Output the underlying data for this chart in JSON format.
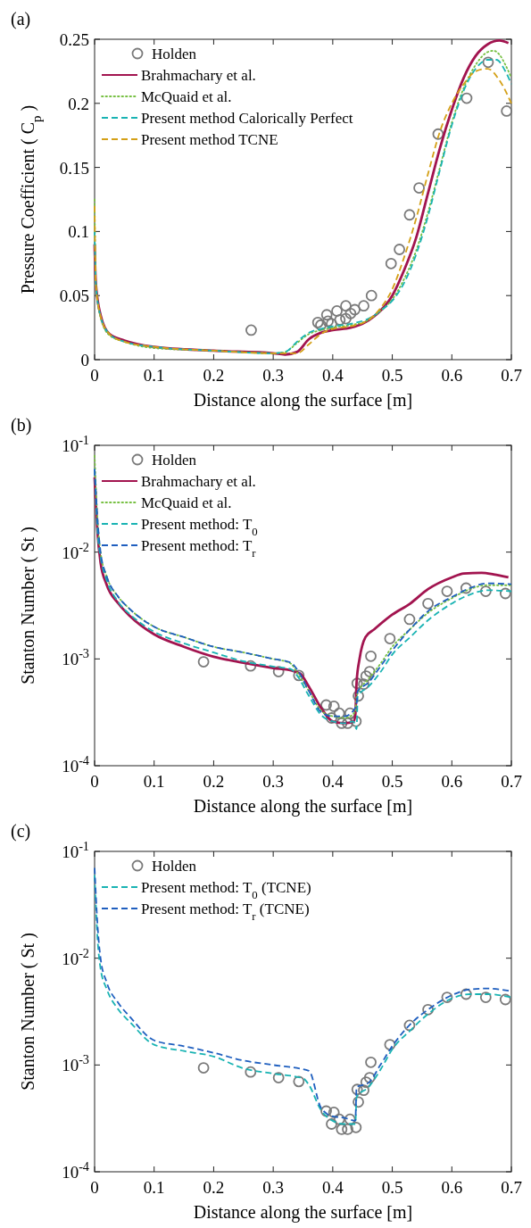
{
  "chart_data": [
    {
      "type": "line",
      "title": "(a)",
      "xlabel": "Distance along the surface [m]",
      "ylabel": "Pressure Coefficient ( C$_{p}$ )",
      "xlim": [
        0,
        0.7
      ],
      "ylim": [
        0,
        0.25
      ],
      "xticks": [
        0,
        0.1,
        0.2,
        0.3,
        0.4,
        0.5,
        0.6,
        0.7
      ],
      "yticks": [
        0,
        0.05,
        0.1,
        0.15,
        0.2,
        0.25
      ],
      "legend": "top left",
      "series": [
        {
          "name": "Holden",
          "type": "scatter",
          "marker": "circle",
          "color": "#7a7a7a",
          "x": [
            0.263,
            0.375,
            0.38,
            0.39,
            0.392,
            0.398,
            0.407,
            0.412,
            0.422,
            0.422,
            0.43,
            0.437,
            0.452,
            0.465,
            0.498,
            0.512,
            0.529,
            0.545,
            0.577,
            0.625,
            0.661,
            0.692
          ],
          "values": [
            0.023,
            0.029,
            0.027,
            0.035,
            0.03,
            0.028,
            0.038,
            0.031,
            0.042,
            0.032,
            0.036,
            0.039,
            0.042,
            0.05,
            0.075,
            0.086,
            0.113,
            0.134,
            0.176,
            0.204,
            0.232,
            0.194
          ]
        },
        {
          "name": "Brahmachary et al.",
          "type": "line",
          "line_style": "solid",
          "color": "#a2144f",
          "x": [
            0,
            0.002,
            0.01,
            0.025,
            0.05,
            0.1,
            0.2,
            0.3,
            0.32,
            0.34,
            0.36,
            0.38,
            0.4,
            0.43,
            0.45,
            0.47,
            0.5,
            0.52,
            0.54,
            0.56,
            0.58,
            0.6,
            0.62,
            0.64,
            0.66,
            0.68,
            0.695
          ],
          "values": [
            0.09,
            0.06,
            0.035,
            0.02,
            0.015,
            0.01,
            0.007,
            0.005,
            0.004,
            0.006,
            0.016,
            0.021,
            0.023,
            0.025,
            0.028,
            0.034,
            0.05,
            0.07,
            0.095,
            0.13,
            0.165,
            0.195,
            0.22,
            0.237,
            0.246,
            0.249,
            0.247
          ]
        },
        {
          "name": "McQuaid et al.",
          "type": "line",
          "line_style": "dotted",
          "color": "#77c043",
          "x": [
            0,
            0.002,
            0.01,
            0.025,
            0.05,
            0.1,
            0.2,
            0.3,
            0.32,
            0.34,
            0.36,
            0.38,
            0.4,
            0.43,
            0.46,
            0.48,
            0.5,
            0.52,
            0.54,
            0.56,
            0.58,
            0.6,
            0.62,
            0.64,
            0.66,
            0.67,
            0.68,
            0.69,
            0.7
          ],
          "values": [
            0.125,
            0.06,
            0.033,
            0.019,
            0.014,
            0.009,
            0.007,
            0.005,
            0.006,
            0.013,
            0.02,
            0.023,
            0.025,
            0.027,
            0.031,
            0.038,
            0.047,
            0.063,
            0.085,
            0.115,
            0.15,
            0.185,
            0.212,
            0.23,
            0.24,
            0.241,
            0.238,
            0.23,
            0.22
          ]
        },
        {
          "name": "Present method Calorically Perfect",
          "type": "line",
          "line_style": "dashed",
          "color": "#19b3b3",
          "x": [
            0,
            0.002,
            0.01,
            0.025,
            0.05,
            0.1,
            0.2,
            0.3,
            0.32,
            0.34,
            0.36,
            0.38,
            0.4,
            0.43,
            0.46,
            0.48,
            0.5,
            0.52,
            0.54,
            0.56,
            0.58,
            0.6,
            0.62,
            0.64,
            0.66,
            0.675,
            0.69,
            0.7
          ],
          "values": [
            0.1,
            0.06,
            0.034,
            0.02,
            0.014,
            0.01,
            0.007,
            0.005,
            0.006,
            0.014,
            0.021,
            0.024,
            0.026,
            0.028,
            0.032,
            0.038,
            0.046,
            0.06,
            0.082,
            0.112,
            0.148,
            0.183,
            0.21,
            0.227,
            0.234,
            0.234,
            0.225,
            0.215
          ]
        },
        {
          "name": "Present method TCNE",
          "type": "line",
          "line_style": "dashed",
          "color": "#d4a017",
          "x": [
            0,
            0.002,
            0.01,
            0.025,
            0.05,
            0.1,
            0.2,
            0.3,
            0.34,
            0.36,
            0.38,
            0.4,
            0.43,
            0.46,
            0.48,
            0.5,
            0.52,
            0.54,
            0.56,
            0.58,
            0.6,
            0.62,
            0.64,
            0.66,
            0.68,
            0.7
          ],
          "values": [
            0.12,
            0.06,
            0.034,
            0.02,
            0.014,
            0.01,
            0.007,
            0.005,
            0.005,
            0.012,
            0.02,
            0.024,
            0.026,
            0.031,
            0.04,
            0.055,
            0.08,
            0.11,
            0.145,
            0.178,
            0.2,
            0.215,
            0.225,
            0.227,
            0.218,
            0.2
          ]
        }
      ]
    },
    {
      "type": "line",
      "title": "(b)",
      "xlabel": "Distance along the surface [m]",
      "ylabel": "Stanton Number ( St )",
      "log": "y",
      "xlim": [
        0,
        0.7
      ],
      "ylim": [
        0.0001,
        0.1
      ],
      "xticks": [
        0,
        0.1,
        0.2,
        0.3,
        0.4,
        0.5,
        0.6,
        0.7
      ],
      "yticks": [
        {
          "value": 0.0001,
          "label": "10$^{-4}$"
        },
        {
          "value": 0.001,
          "label": "10$^{-3}$"
        },
        {
          "value": 0.01,
          "label": "10$^{-2}$"
        },
        {
          "value": 0.1,
          "label": "10$^{-1}$"
        }
      ],
      "legend": "top left",
      "series": [
        {
          "name": "Holden",
          "type": "scatter",
          "marker": "circle",
          "color": "#7a7a7a",
          "x": [
            0.183,
            0.262,
            0.309,
            0.343,
            0.389,
            0.398,
            0.402,
            0.411,
            0.415,
            0.425,
            0.429,
            0.439,
            0.441,
            0.443,
            0.452,
            0.456,
            0.462,
            0.464,
            0.496,
            0.529,
            0.56,
            0.592,
            0.624,
            0.657,
            0.69
          ],
          "values": [
            0.00094,
            0.00086,
            0.00076,
            0.0007,
            0.00037,
            0.00028,
            0.00036,
            0.00031,
            0.00025,
            0.00025,
            0.00031,
            0.00026,
            0.00059,
            0.00045,
            0.00058,
            0.00069,
            0.00076,
            0.00106,
            0.00155,
            0.00235,
            0.0033,
            0.0043,
            0.0046,
            0.0043,
            0.0041
          ]
        },
        {
          "name": "Brahmachary et al.",
          "type": "line",
          "line_style": "solid",
          "color": "#a2144f",
          "x": [
            0,
            0.005,
            0.01,
            0.02,
            0.04,
            0.06,
            0.1,
            0.15,
            0.2,
            0.25,
            0.3,
            0.33,
            0.345,
            0.36,
            0.38,
            0.4,
            0.42,
            0.435,
            0.438,
            0.44,
            0.445,
            0.455,
            0.47,
            0.5,
            0.53,
            0.56,
            0.6,
            0.62,
            0.65,
            0.67,
            0.695
          ],
          "values": [
            0.05,
            0.015,
            0.008,
            0.005,
            0.0033,
            0.0025,
            0.0017,
            0.0013,
            0.00105,
            0.00092,
            0.00082,
            0.00078,
            0.00073,
            0.00055,
            0.00035,
            0.00026,
            0.00025,
            0.00026,
            0.0003,
            0.0006,
            0.001,
            0.0016,
            0.0019,
            0.0026,
            0.0033,
            0.0045,
            0.0058,
            0.0063,
            0.0064,
            0.0062,
            0.0058
          ]
        },
        {
          "name": "McQuaid et al.",
          "type": "line",
          "line_style": "dotted",
          "color": "#77c043",
          "x": [
            0,
            0.005,
            0.01,
            0.02,
            0.04,
            0.06,
            0.1,
            0.15,
            0.2,
            0.25,
            0.3,
            0.32,
            0.33,
            0.34,
            0.36,
            0.38,
            0.4,
            0.42,
            0.438,
            0.44,
            0.46,
            0.48,
            0.5,
            0.53,
            0.56,
            0.6,
            0.63,
            0.66,
            0.7
          ],
          "values": [
            0.08,
            0.02,
            0.01,
            0.006,
            0.0038,
            0.0029,
            0.002,
            0.0016,
            0.0013,
            0.00115,
            0.001,
            0.00095,
            0.0009,
            0.00075,
            0.0005,
            0.00033,
            0.00029,
            0.00028,
            0.00032,
            0.00045,
            0.00065,
            0.0009,
            0.0013,
            0.0019,
            0.0027,
            0.0037,
            0.0045,
            0.0049,
            0.0049
          ]
        },
        {
          "name": "Present method: T$_{0}$",
          "type": "line",
          "line_style": "dashed",
          "color": "#19b3b3",
          "x": [
            0,
            0.005,
            0.01,
            0.02,
            0.04,
            0.06,
            0.1,
            0.15,
            0.2,
            0.25,
            0.3,
            0.33,
            0.34,
            0.36,
            0.38,
            0.4,
            0.42,
            0.435,
            0.44,
            0.442,
            0.46,
            0.48,
            0.5,
            0.53,
            0.56,
            0.6,
            0.63,
            0.66,
            0.7
          ],
          "values": [
            0.06,
            0.015,
            0.009,
            0.0055,
            0.0034,
            0.0026,
            0.0018,
            0.0014,
            0.00115,
            0.00095,
            0.00085,
            0.0008,
            0.0007,
            0.00045,
            0.0003,
            0.00026,
            0.00025,
            0.00026,
            0.00022,
            0.00045,
            0.00055,
            0.00075,
            0.0011,
            0.0016,
            0.0023,
            0.0033,
            0.004,
            0.0044,
            0.0043
          ]
        },
        {
          "name": "Present method: T$_{r}$",
          "type": "line",
          "line_style": "dashed",
          "color": "#1f5fbf",
          "x": [
            0,
            0.005,
            0.01,
            0.02,
            0.04,
            0.06,
            0.1,
            0.15,
            0.2,
            0.25,
            0.3,
            0.33,
            0.34,
            0.36,
            0.38,
            0.4,
            0.42,
            0.435,
            0.44,
            0.442,
            0.46,
            0.48,
            0.5,
            0.53,
            0.56,
            0.6,
            0.63,
            0.66,
            0.7
          ],
          "values": [
            0.06,
            0.02,
            0.01,
            0.006,
            0.0038,
            0.0029,
            0.002,
            0.0016,
            0.0013,
            0.00115,
            0.001,
            0.00092,
            0.0008,
            0.0005,
            0.00032,
            0.00029,
            0.00029,
            0.00033,
            0.00038,
            0.0005,
            0.0006,
            0.00085,
            0.0012,
            0.0019,
            0.0028,
            0.0038,
            0.0046,
            0.0051,
            0.005
          ]
        }
      ]
    },
    {
      "type": "line",
      "title": "(c)",
      "xlabel": "Distance along the surface [m]",
      "ylabel": "Stanton Number ( St )",
      "log": "y",
      "xlim": [
        0,
        0.7
      ],
      "ylim": [
        0.0001,
        0.1
      ],
      "xticks": [
        0,
        0.1,
        0.2,
        0.3,
        0.4,
        0.5,
        0.6,
        0.7
      ],
      "yticks": [
        {
          "value": 0.0001,
          "label": "10$^{-4}$"
        },
        {
          "value": 0.001,
          "label": "10$^{-3}$"
        },
        {
          "value": 0.01,
          "label": "10$^{-2}$"
        },
        {
          "value": 0.1,
          "label": "10$^{-1}$"
        }
      ],
      "legend": "top left",
      "series": [
        {
          "name": "Holden",
          "type": "scatter",
          "marker": "circle",
          "color": "#7a7a7a",
          "x": [
            0.183,
            0.262,
            0.309,
            0.343,
            0.389,
            0.398,
            0.402,
            0.411,
            0.415,
            0.425,
            0.429,
            0.439,
            0.441,
            0.443,
            0.452,
            0.456,
            0.462,
            0.464,
            0.496,
            0.529,
            0.56,
            0.592,
            0.624,
            0.657,
            0.69
          ],
          "values": [
            0.00094,
            0.00086,
            0.00076,
            0.0007,
            0.00037,
            0.00028,
            0.00036,
            0.00031,
            0.00025,
            0.00025,
            0.00031,
            0.00026,
            0.00059,
            0.00045,
            0.00058,
            0.00069,
            0.00076,
            0.00106,
            0.00155,
            0.00235,
            0.0033,
            0.0043,
            0.0046,
            0.0043,
            0.0041
          ]
        },
        {
          "name": "Present method: T$_{0}$ (TCNE)",
          "type": "line",
          "line_style": "dashed",
          "color": "#19b3b3",
          "x": [
            0,
            0.005,
            0.01,
            0.02,
            0.04,
            0.06,
            0.1,
            0.15,
            0.2,
            0.25,
            0.3,
            0.35,
            0.36,
            0.38,
            0.4,
            0.42,
            0.438,
            0.44,
            0.46,
            0.48,
            0.5,
            0.53,
            0.56,
            0.6,
            0.63,
            0.66,
            0.7
          ],
          "values": [
            0.06,
            0.015,
            0.008,
            0.0052,
            0.0033,
            0.0025,
            0.00155,
            0.00135,
            0.0012,
            0.00093,
            0.00083,
            0.00075,
            0.00065,
            0.00038,
            0.0003,
            0.00028,
            0.00028,
            0.0005,
            0.00062,
            0.0009,
            0.0014,
            0.0021,
            0.003,
            0.0042,
            0.0046,
            0.0046,
            0.0043
          ]
        },
        {
          "name": "Present method: T$_{r}$ (TCNE)",
          "type": "line",
          "line_style": "dashed",
          "color": "#1f5fbf",
          "x": [
            0,
            0.005,
            0.01,
            0.02,
            0.04,
            0.06,
            0.1,
            0.15,
            0.2,
            0.25,
            0.3,
            0.36,
            0.38,
            0.4,
            0.42,
            0.438,
            0.44,
            0.46,
            0.48,
            0.5,
            0.53,
            0.56,
            0.6,
            0.63,
            0.66,
            0.7
          ],
          "values": [
            0.07,
            0.02,
            0.01,
            0.006,
            0.0038,
            0.0028,
            0.0017,
            0.0015,
            0.0013,
            0.0011,
            0.001,
            0.00088,
            0.0004,
            0.00033,
            0.00032,
            0.0003,
            0.00062,
            0.00068,
            0.001,
            0.0015,
            0.0024,
            0.0033,
            0.0045,
            0.0051,
            0.0052,
            0.0049
          ]
        }
      ]
    }
  ]
}
